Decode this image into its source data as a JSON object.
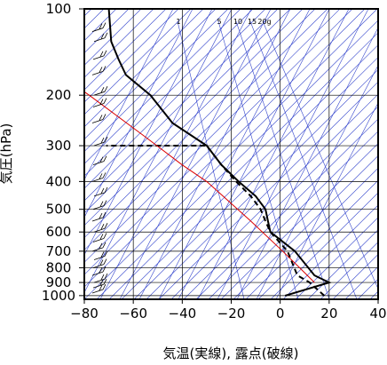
{
  "chart_data": {
    "type": "line",
    "title": "",
    "xlabel": "気温(実線), 露点(破線)",
    "ylabel": "気圧(hPa)",
    "xlim": [
      -80,
      40
    ],
    "ylim": [
      1030,
      100
    ],
    "y_scale": "log",
    "x_ticks": [
      -80,
      -60,
      -40,
      -20,
      0,
      20,
      40
    ],
    "x_tick_labels": [
      "−80",
      "−60",
      "−40",
      "−20",
      "0",
      "20",
      "40"
    ],
    "y_ticks": [
      100,
      200,
      300,
      400,
      500,
      600,
      700,
      800,
      900,
      1000
    ],
    "y_tick_labels": [
      "100",
      "200",
      "300",
      "400",
      "500",
      "600",
      "700",
      "800",
      "900",
      "1000"
    ],
    "grid": true,
    "mixing_ratio_labels": [
      "1",
      "5",
      "10",
      "15",
      "20g"
    ],
    "series": [
      {
        "role": "temperature",
        "line_style": "solid",
        "color": "#000000",
        "x": [
          2,
          20,
          14,
          6,
          -4,
          -5,
          -6,
          -10,
          -17,
          -24,
          -30,
          -44,
          -53,
          -63,
          -66,
          -69,
          -70
        ],
        "y": [
          1000,
          900,
          850,
          700,
          600,
          550,
          500,
          450,
          400,
          350,
          300,
          250,
          200,
          170,
          150,
          130,
          100
        ]
      },
      {
        "role": "dewpoint",
        "line_style": "dashed",
        "color": "#000000",
        "x": [
          18,
          12,
          7,
          3,
          -4,
          -6,
          -8,
          -12,
          -18,
          -24,
          -30,
          -71
        ],
        "y": [
          1000,
          900,
          850,
          700,
          600,
          550,
          500,
          450,
          400,
          350,
          300,
          300
        ]
      },
      {
        "role": "parcel",
        "line_style": "solid",
        "color": "#dd0000",
        "x": [
          14,
          8,
          1,
          -12,
          -30,
          -40,
          -55,
          -78,
          -90
        ],
        "y": [
          900,
          800,
          700,
          550,
          400,
          350,
          280,
          200,
          170
        ]
      }
    ],
    "colors": {
      "isotherm": "#3344cc",
      "grid": "#000000"
    }
  }
}
